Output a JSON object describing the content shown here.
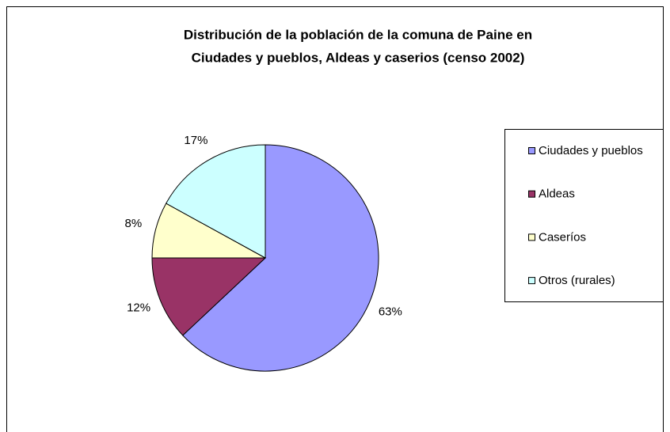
{
  "chart_data": {
    "type": "pie",
    "title": [
      "Distribución de la población de la comuna de Paine en",
      "Ciudades y pueblos, Aldeas y caserios (censo 2002)"
    ],
    "categories": [
      "Ciudades y pueblos",
      "Aldeas",
      "Caseríos",
      "Otros (rurales)"
    ],
    "values": [
      63,
      12,
      8,
      17
    ],
    "value_labels": [
      "63%",
      "12%",
      "8%",
      "17%"
    ],
    "colors": [
      "#9999ff",
      "#993366",
      "#ffffcc",
      "#ccffff"
    ],
    "legend": "right"
  }
}
